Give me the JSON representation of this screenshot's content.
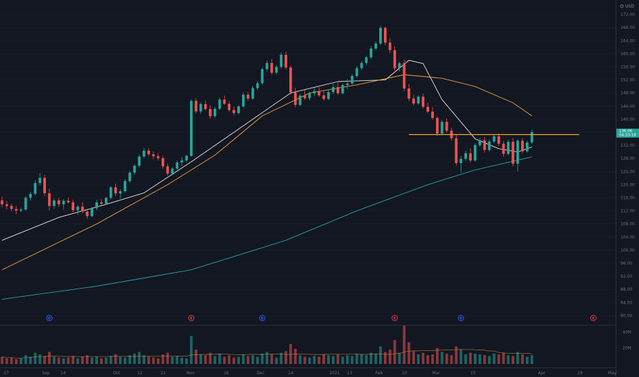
{
  "chart_data": {
    "type": "candlestick",
    "currency_label": "USD",
    "last_price": {
      "value": 136.06,
      "label": "136.06",
      "sub_label": "04:33:18",
      "color": "#26a69a"
    },
    "y_axis": {
      "range": [
        78,
        176
      ],
      "ticks": [
        "172.00",
        "168.00",
        "164.00",
        "160.00",
        "156.00",
        "152.00",
        "148.00",
        "144.00",
        "140.00",
        "136.00",
        "132.00",
        "128.00",
        "124.00",
        "120.00",
        "116.00",
        "112.00",
        "108.00",
        "104.00",
        "100.00",
        "96.00",
        "92.00",
        "88.00",
        "84.00",
        "80.00"
      ]
    },
    "volume_axis": {
      "ticks": [
        "40M",
        "20M"
      ]
    },
    "x_axis": {
      "ticks": [
        "17",
        "Sep",
        "14",
        "Oct",
        "12",
        "21",
        "Nov",
        "16",
        "Dec",
        "14",
        "2021",
        "13",
        "Feb",
        "10",
        "Mar",
        "15",
        "Apr",
        "19",
        "May"
      ]
    },
    "candles": [
      [
        115.2,
        116.4,
        113.1,
        114.0
      ],
      [
        114.0,
        115.0,
        112.5,
        113.5
      ],
      [
        113.5,
        114.2,
        111.9,
        112.6
      ],
      [
        112.6,
        113.5,
        111.0,
        112.1
      ],
      [
        112.1,
        113.0,
        111.6,
        112.4
      ],
      [
        112.4,
        116.5,
        112.0,
        116.0
      ],
      [
        116.0,
        117.8,
        115.1,
        117.2
      ],
      [
        117.2,
        121.4,
        116.8,
        120.5
      ],
      [
        120.5,
        123.6,
        119.8,
        122.1
      ],
      [
        122.1,
        123.0,
        116.6,
        117.4
      ],
      [
        117.4,
        118.8,
        112.1,
        113.5
      ],
      [
        113.5,
        115.8,
        112.6,
        115.2
      ],
      [
        115.2,
        116.0,
        113.2,
        114.0
      ],
      [
        114.0,
        115.6,
        112.4,
        115.1
      ],
      [
        115.1,
        116.1,
        114.2,
        114.6
      ],
      [
        114.6,
        115.4,
        111.6,
        112.2
      ],
      [
        112.2,
        113.7,
        110.8,
        113.3
      ],
      [
        113.3,
        114.6,
        111.3,
        111.8
      ],
      [
        111.8,
        112.5,
        109.6,
        110.4
      ],
      [
        110.4,
        113.2,
        110.0,
        112.8
      ],
      [
        112.8,
        115.4,
        112.1,
        114.6
      ],
      [
        114.6,
        115.6,
        113.4,
        114.2
      ],
      [
        114.2,
        116.3,
        113.9,
        116.0
      ],
      [
        116.0,
        119.6,
        115.5,
        119.2
      ],
      [
        119.2,
        120.3,
        116.5,
        117.3
      ],
      [
        117.3,
        118.6,
        115.8,
        118.0
      ],
      [
        118.0,
        121.7,
        117.6,
        121.1
      ],
      [
        121.1,
        124.2,
        120.6,
        123.7
      ],
      [
        123.7,
        126.3,
        123.1,
        125.8
      ],
      [
        125.8,
        129.2,
        125.2,
        128.6
      ],
      [
        128.6,
        131.3,
        128.1,
        130.4
      ],
      [
        130.4,
        131.2,
        128.6,
        129.3
      ],
      [
        129.3,
        130.2,
        127.8,
        128.7
      ],
      [
        128.7,
        129.8,
        127.4,
        128.1
      ],
      [
        128.1,
        128.8,
        124.9,
        125.6
      ],
      [
        125.6,
        126.4,
        122.8,
        123.4
      ],
      [
        123.4,
        125.3,
        122.9,
        124.9
      ],
      [
        124.9,
        127.4,
        124.5,
        126.8
      ],
      [
        126.8,
        128.5,
        125.7,
        127.4
      ],
      [
        127.4,
        129.2,
        126.9,
        128.8
      ],
      [
        128.8,
        146.2,
        128.5,
        145.6
      ],
      [
        145.6,
        146.4,
        141.8,
        142.4
      ],
      [
        142.4,
        145.2,
        141.6,
        144.6
      ],
      [
        144.6,
        145.7,
        142.7,
        143.1
      ],
      [
        143.1,
        144.3,
        140.2,
        140.9
      ],
      [
        140.9,
        143.8,
        140.4,
        143.2
      ],
      [
        143.2,
        146.6,
        142.8,
        146.0
      ],
      [
        146.0,
        147.2,
        144.4,
        144.7
      ],
      [
        144.7,
        145.6,
        142.3,
        142.8
      ],
      [
        142.8,
        143.9,
        141.2,
        141.9
      ],
      [
        141.9,
        144.4,
        141.4,
        143.9
      ],
      [
        143.9,
        148.2,
        143.5,
        147.5
      ],
      [
        147.5,
        148.3,
        145.6,
        146.3
      ],
      [
        146.3,
        150.2,
        145.8,
        149.5
      ],
      [
        149.5,
        151.6,
        148.9,
        151.0
      ],
      [
        151.0,
        155.8,
        150.5,
        155.3
      ],
      [
        155.3,
        157.9,
        154.6,
        157.2
      ],
      [
        157.2,
        158.4,
        153.6,
        154.2
      ],
      [
        154.2,
        156.6,
        153.7,
        156.0
      ],
      [
        156.0,
        160.4,
        155.4,
        159.7
      ],
      [
        159.7,
        160.6,
        155.1,
        155.8
      ],
      [
        155.8,
        156.4,
        147.5,
        148.2
      ],
      [
        148.2,
        149.6,
        143.6,
        144.4
      ],
      [
        144.4,
        147.8,
        143.9,
        147.2
      ],
      [
        147.2,
        149.0,
        145.9,
        146.4
      ],
      [
        146.4,
        148.3,
        145.8,
        147.9
      ],
      [
        147.9,
        149.6,
        147.1,
        148.6
      ],
      [
        148.6,
        149.8,
        146.9,
        147.3
      ],
      [
        147.3,
        148.6,
        145.7,
        146.2
      ],
      [
        146.2,
        148.9,
        145.8,
        148.3
      ],
      [
        148.3,
        150.8,
        147.6,
        149.8
      ],
      [
        149.8,
        151.2,
        147.4,
        147.9
      ],
      [
        147.9,
        150.9,
        147.5,
        150.4
      ],
      [
        150.4,
        152.3,
        149.2,
        150.9
      ],
      [
        150.9,
        153.8,
        150.4,
        153.2
      ],
      [
        153.2,
        156.2,
        152.7,
        155.6
      ],
      [
        155.6,
        157.8,
        155.0,
        157.2
      ],
      [
        157.2,
        159.4,
        156.6,
        158.9
      ],
      [
        158.9,
        162.4,
        158.3,
        161.6
      ],
      [
        161.6,
        163.8,
        161.0,
        163.1
      ],
      [
        163.1,
        168.6,
        162.7,
        167.9
      ],
      [
        167.9,
        168.2,
        162.6,
        163.4
      ],
      [
        163.4,
        164.8,
        160.2,
        161.1
      ],
      [
        161.1,
        162.2,
        154.8,
        155.6
      ],
      [
        155.6,
        157.6,
        154.6,
        157.1
      ],
      [
        157.1,
        158.2,
        148.6,
        149.4
      ],
      [
        149.4,
        150.8,
        145.6,
        146.3
      ],
      [
        146.3,
        147.4,
        144.2,
        144.8
      ],
      [
        144.8,
        147.4,
        144.3,
        146.9
      ],
      [
        146.9,
        147.8,
        143.3,
        143.8
      ],
      [
        143.8,
        145.1,
        141.9,
        142.3
      ],
      [
        142.3,
        143.7,
        139.8,
        140.4
      ],
      [
        140.4,
        140.9,
        134.9,
        135.6
      ],
      [
        135.6,
        139.8,
        135.1,
        139.2
      ],
      [
        139.2,
        140.2,
        135.9,
        136.5
      ],
      [
        136.5,
        137.4,
        133.5,
        134.2
      ],
      [
        134.2,
        135.1,
        125.8,
        126.6
      ],
      [
        126.6,
        128.8,
        123.6,
        127.9
      ],
      [
        127.9,
        130.4,
        127.3,
        129.6
      ],
      [
        129.6,
        131.2,
        126.8,
        127.4
      ],
      [
        127.4,
        132.7,
        127.0,
        132.1
      ],
      [
        132.1,
        134.3,
        131.6,
        133.6
      ],
      [
        133.6,
        134.6,
        129.8,
        130.6
      ],
      [
        130.6,
        133.8,
        130.1,
        133.2
      ],
      [
        133.2,
        135.4,
        132.7,
        134.8
      ],
      [
        134.8,
        135.6,
        131.8,
        132.5
      ],
      [
        132.5,
        133.3,
        128.6,
        129.4
      ],
      [
        129.4,
        133.7,
        129.0,
        133.1
      ],
      [
        133.1,
        134.3,
        125.6,
        126.4
      ],
      [
        126.4,
        133.9,
        124.0,
        133.4
      ],
      [
        133.4,
        134.2,
        129.6,
        130.2
      ],
      [
        130.2,
        133.5,
        129.8,
        132.9
      ],
      [
        132.9,
        136.8,
        132.5,
        136.1
      ]
    ],
    "moving_averages": [
      {
        "period": 20,
        "color": "#e8e8e8",
        "points": [
          [
            0,
            103
          ],
          [
            12,
            110
          ],
          [
            22,
            114
          ],
          [
            30,
            117.5
          ],
          [
            40,
            127
          ],
          [
            50,
            137
          ],
          [
            61,
            148
          ],
          [
            71,
            151.5
          ],
          [
            81,
            152
          ],
          [
            86,
            158
          ],
          [
            89,
            157
          ],
          [
            93,
            146
          ],
          [
            100,
            134
          ],
          [
            105,
            131
          ],
          [
            109,
            130
          ],
          [
            112,
            131.5
          ]
        ]
      },
      {
        "period": 50,
        "color": "#f5a33c",
        "points": [
          [
            0,
            94
          ],
          [
            20,
            108
          ],
          [
            35,
            120
          ],
          [
            45,
            129
          ],
          [
            55,
            141
          ],
          [
            65,
            148
          ],
          [
            75,
            150.5
          ],
          [
            85,
            153.6
          ],
          [
            93,
            152.5
          ],
          [
            100,
            150
          ],
          [
            108,
            145
          ],
          [
            112,
            141
          ]
        ]
      },
      {
        "period": 200,
        "color": "#26a6a6",
        "points": [
          [
            0,
            85
          ],
          [
            20,
            89
          ],
          [
            40,
            94
          ],
          [
            60,
            103
          ],
          [
            75,
            112
          ],
          [
            90,
            120
          ],
          [
            100,
            124.5
          ],
          [
            112,
            128.5
          ]
        ]
      }
    ],
    "horizontal_line": {
      "value": 135.3,
      "from_index": 86,
      "to_index": 122,
      "color": "#f5a623"
    },
    "events": [
      {
        "index": 10,
        "letter": "D",
        "color": "#2962ff"
      },
      {
        "index": 40,
        "letter": "E",
        "color": "#f23645"
      },
      {
        "index": 55,
        "letter": "D",
        "color": "#2962ff"
      },
      {
        "index": 83,
        "letter": "E",
        "color": "#f23645"
      },
      {
        "index": 97,
        "letter": "D",
        "color": "#2962ff"
      },
      {
        "index": 125,
        "letter": "E",
        "color": "#f23645"
      }
    ],
    "volumes": [
      9,
      7,
      8,
      6,
      7,
      11,
      9,
      14,
      12,
      10,
      15,
      9,
      8,
      7,
      8,
      10,
      7,
      9,
      11,
      8,
      9,
      7,
      8,
      10,
      12,
      9,
      8,
      11,
      13,
      15,
      11,
      9,
      8,
      7,
      12,
      14,
      9,
      10,
      8,
      7,
      35,
      18,
      12,
      11,
      14,
      10,
      13,
      9,
      11,
      8,
      9,
      12,
      10,
      11,
      9,
      13,
      15,
      12,
      8,
      14,
      16,
      25,
      19,
      11,
      9,
      8,
      10,
      9,
      12,
      11,
      10,
      12,
      9,
      11,
      10,
      13,
      12,
      11,
      14,
      13,
      22,
      15,
      18,
      30,
      14,
      48,
      27,
      16,
      12,
      14,
      11,
      12,
      20,
      15,
      13,
      11,
      22,
      18,
      12,
      14,
      13,
      12,
      11,
      10,
      13,
      12,
      14,
      11,
      10,
      15,
      12,
      9,
      11
    ],
    "colors": {
      "background": "#131722",
      "up": "#26a69a",
      "down": "#ef5350",
      "axis_text": "#6b6f7a",
      "grid": "#1c2130"
    }
  }
}
